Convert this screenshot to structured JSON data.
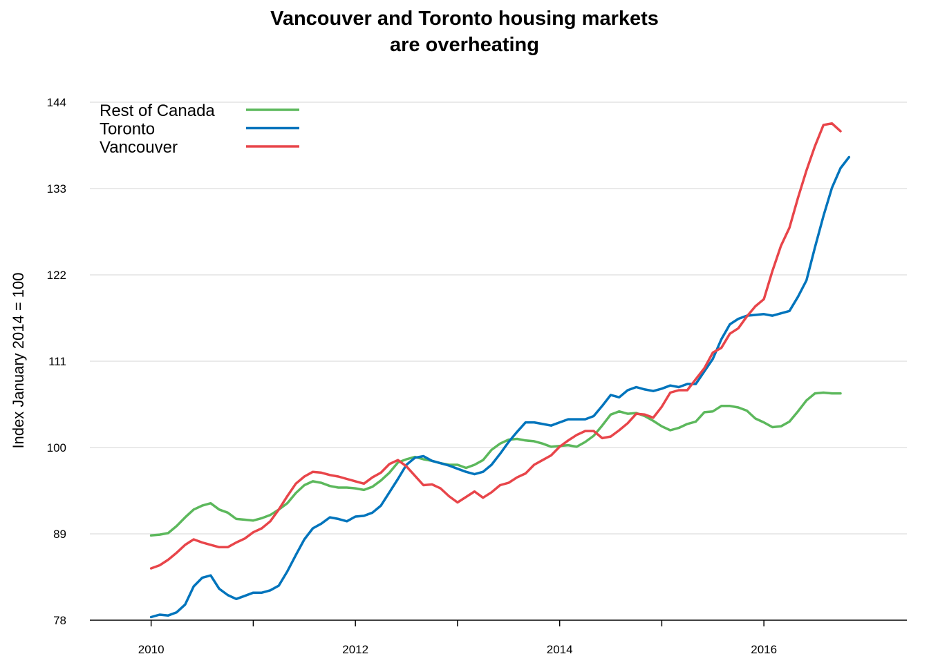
{
  "chart_data": {
    "type": "line",
    "title": [
      "Vancouver and Toronto housing markets",
      "are overheating"
    ],
    "xlabel": "",
    "ylabel": "Index January 2014 = 100",
    "xlim": [
      2009.4,
      2017.4
    ],
    "ylim": [
      78,
      144
    ],
    "xticks": [
      2010,
      2011,
      2012,
      2013,
      2014,
      2015,
      2016
    ],
    "xtick_labels": [
      "2010",
      "",
      "2012",
      "",
      "2014",
      "",
      "2016"
    ],
    "yticks": [
      78,
      89,
      100,
      111,
      122,
      133,
      144
    ],
    "grid": "horizontal",
    "legend_position": "top-left",
    "x_start": 2010,
    "x_step_months": 1,
    "series": [
      {
        "name": "Rest of Canada",
        "color": "#5cb85c",
        "values": [
          88.8,
          88.9,
          89.1,
          90.0,
          91.1,
          92.1,
          92.6,
          92.9,
          92.1,
          91.7,
          90.9,
          90.8,
          90.7,
          91.0,
          91.4,
          92.1,
          92.9,
          94.2,
          95.2,
          95.7,
          95.5,
          95.1,
          94.9,
          94.9,
          94.8,
          94.6,
          95.0,
          95.8,
          96.8,
          98.1,
          98.5,
          98.8,
          98.5,
          98.3,
          98.0,
          97.8,
          97.8,
          97.4,
          97.8,
          98.4,
          99.7,
          100.5,
          101.0,
          101.1,
          100.9,
          100.8,
          100.5,
          100.1,
          100.2,
          100.3,
          100.1,
          100.7,
          101.5,
          102.8,
          104.2,
          104.6,
          104.3,
          104.4,
          104.0,
          103.4,
          102.7,
          102.2,
          102.5,
          103.0,
          103.3,
          104.5,
          104.6,
          105.3,
          105.3,
          105.1,
          104.7,
          103.7,
          103.2,
          102.6,
          102.7,
          103.3,
          104.6,
          106.0,
          106.9,
          107.0,
          106.9,
          106.9
        ]
      },
      {
        "name": "Toronto",
        "color": "#0074bc",
        "values": [
          78.4,
          78.7,
          78.6,
          79.0,
          80.0,
          82.3,
          83.4,
          83.7,
          82.0,
          81.2,
          80.7,
          81.1,
          81.5,
          81.5,
          81.8,
          82.4,
          84.2,
          86.3,
          88.3,
          89.7,
          90.3,
          91.1,
          90.9,
          90.6,
          91.2,
          91.3,
          91.7,
          92.6,
          94.3,
          96.0,
          97.8,
          98.7,
          98.9,
          98.3,
          98.0,
          97.7,
          97.3,
          96.9,
          96.6,
          96.9,
          97.8,
          99.2,
          100.7,
          102.0,
          103.2,
          103.2,
          103.0,
          102.8,
          103.2,
          103.6,
          103.6,
          103.6,
          104.0,
          105.3,
          106.7,
          106.4,
          107.3,
          107.7,
          107.4,
          107.2,
          107.5,
          107.9,
          107.7,
          108.1,
          108.1,
          109.7,
          111.3,
          113.8,
          115.7,
          116.4,
          116.8,
          116.9,
          117.0,
          116.8,
          117.1,
          117.4,
          119.2,
          121.3,
          125.5,
          129.5,
          133.1,
          135.6,
          137.0
        ]
      },
      {
        "name": "Vancouver",
        "color": "#e8454a",
        "values": [
          84.6,
          85.0,
          85.7,
          86.6,
          87.6,
          88.3,
          87.9,
          87.6,
          87.3,
          87.3,
          87.9,
          88.4,
          89.2,
          89.7,
          90.6,
          92.1,
          93.8,
          95.4,
          96.3,
          96.9,
          96.8,
          96.5,
          96.3,
          96.0,
          95.7,
          95.4,
          96.2,
          96.8,
          97.9,
          98.4,
          97.6,
          96.4,
          95.2,
          95.3,
          94.8,
          93.8,
          93.0,
          93.7,
          94.4,
          93.6,
          94.3,
          95.2,
          95.5,
          96.2,
          96.7,
          97.8,
          98.4,
          99.0,
          100.1,
          100.9,
          101.6,
          102.1,
          102.1,
          101.2,
          101.4,
          102.2,
          103.1,
          104.3,
          104.2,
          103.8,
          105.2,
          107.0,
          107.3,
          107.3,
          108.7,
          110.1,
          112.1,
          112.7,
          114.5,
          115.2,
          116.7,
          118.0,
          118.9,
          122.5,
          125.7,
          128.0,
          131.8,
          135.3,
          138.4,
          141.1,
          141.3,
          140.3
        ]
      }
    ]
  }
}
